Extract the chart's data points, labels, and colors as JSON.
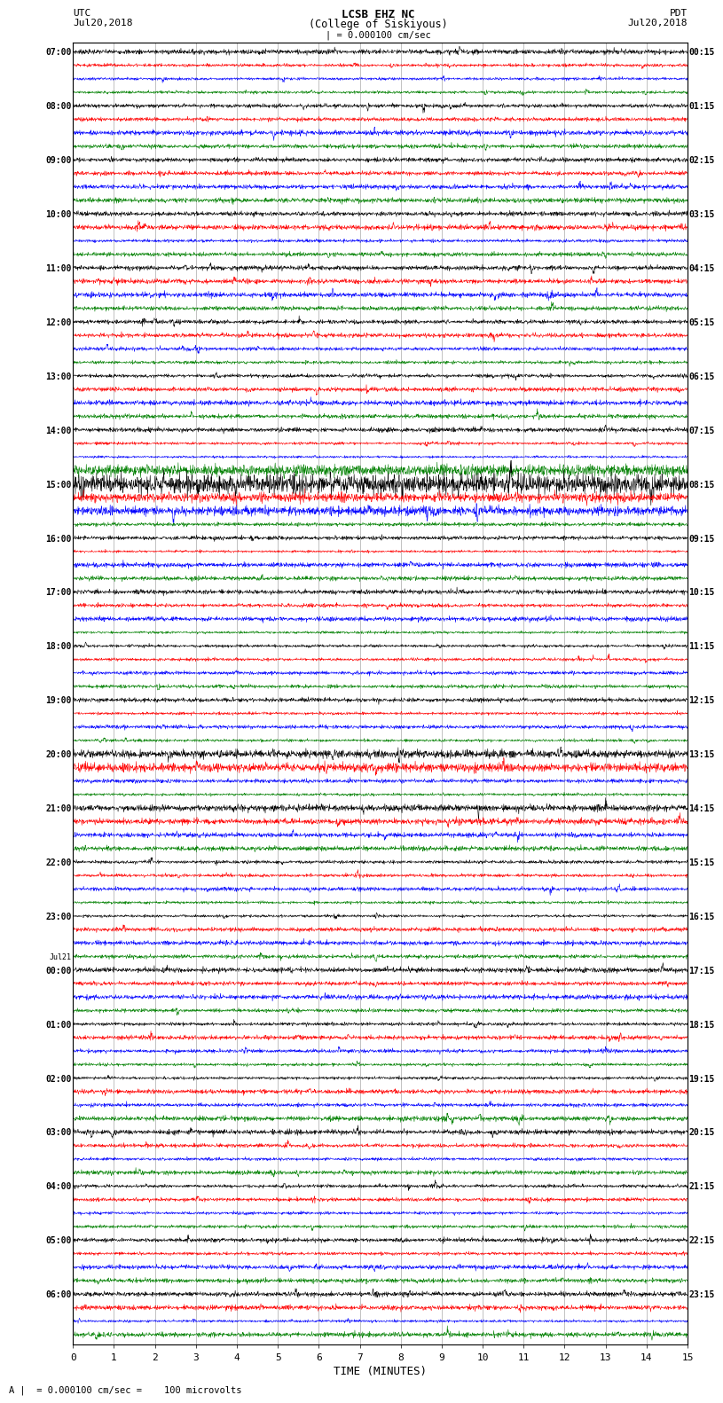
{
  "title_line1": "LCSB EHZ NC",
  "title_line2": "(College of Siskiyous)",
  "scale_label": "| = 0.000100 cm/sec",
  "left_label_top": "UTC",
  "left_label_date": "Jul20,2018",
  "right_label_top": "PDT",
  "right_label_date": "Jul20,2018",
  "xlabel": "TIME (MINUTES)",
  "footer": "A |  = 0.000100 cm/sec =    100 microvolts",
  "utc_labels": [
    [
      "07:00",
      0
    ],
    [
      "08:00",
      4
    ],
    [
      "09:00",
      8
    ],
    [
      "10:00",
      12
    ],
    [
      "11:00",
      16
    ],
    [
      "12:00",
      20
    ],
    [
      "13:00",
      24
    ],
    [
      "14:00",
      28
    ],
    [
      "15:00",
      32
    ],
    [
      "16:00",
      36
    ],
    [
      "17:00",
      40
    ],
    [
      "18:00",
      44
    ],
    [
      "19:00",
      48
    ],
    [
      "20:00",
      52
    ],
    [
      "21:00",
      56
    ],
    [
      "22:00",
      60
    ],
    [
      "23:00",
      64
    ],
    [
      "Jul21",
      67
    ],
    [
      "00:00",
      68
    ],
    [
      "01:00",
      72
    ],
    [
      "02:00",
      76
    ],
    [
      "03:00",
      80
    ],
    [
      "04:00",
      84
    ],
    [
      "05:00",
      88
    ],
    [
      "06:00",
      92
    ]
  ],
  "pdt_labels": [
    [
      "00:15",
      0
    ],
    [
      "01:15",
      4
    ],
    [
      "02:15",
      8
    ],
    [
      "03:15",
      12
    ],
    [
      "04:15",
      16
    ],
    [
      "05:15",
      20
    ],
    [
      "06:15",
      24
    ],
    [
      "07:15",
      28
    ],
    [
      "08:15",
      32
    ],
    [
      "09:15",
      36
    ],
    [
      "10:15",
      40
    ],
    [
      "11:15",
      44
    ],
    [
      "12:15",
      48
    ],
    [
      "13:15",
      52
    ],
    [
      "14:15",
      56
    ],
    [
      "15:15",
      60
    ],
    [
      "16:15",
      64
    ],
    [
      "17:15",
      68
    ],
    [
      "18:15",
      72
    ],
    [
      "19:15",
      76
    ],
    [
      "20:15",
      80
    ],
    [
      "21:15",
      84
    ],
    [
      "22:15",
      88
    ],
    [
      "23:15",
      92
    ]
  ],
  "trace_color_cycle": [
    "black",
    "red",
    "blue",
    "green"
  ],
  "n_rows": 96,
  "n_minutes": 15,
  "bg_color": "white",
  "xmin": 0,
  "xmax": 15,
  "xticks": [
    0,
    1,
    2,
    3,
    4,
    5,
    6,
    7,
    8,
    9,
    10,
    11,
    12,
    13,
    14,
    15
  ],
  "grid_color": "#aaaaaa",
  "vgrid_minutes": [
    1,
    2,
    3,
    4,
    5,
    6,
    7,
    8,
    9,
    10,
    11,
    12,
    13,
    14
  ]
}
